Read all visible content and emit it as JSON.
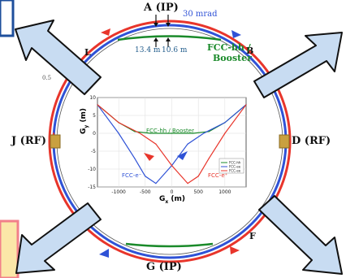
{
  "ring": {
    "point_labels": {
      "A": "A (IP)",
      "B": "B",
      "D": "D (RF)",
      "F": "F",
      "G": "G (IP)",
      "J": "J (RF)",
      "L": "L"
    },
    "annotations": {
      "crossing_angle": "30 mrad",
      "offset_left": "13.4 m",
      "offset_right": "10.6 m",
      "booster_label_line1": "FCC-hh /",
      "booster_label_line2": "Booster",
      "small_left_label": "0.5"
    }
  },
  "inset_chart": {
    "ylabel": "G",
    "ylabel_sub": "y",
    "ylabel_unit": " (m)",
    "xlabel": "G",
    "xlabel_sub": "x",
    "xlabel_unit": " (m)",
    "booster_curve_label": "FCC-hh / Booster",
    "ee_left_label": "FCC-e⁻",
    "ee_right_label": "FCC-e⁺",
    "legend": [
      "FCC-hh",
      "FCC-ee",
      "FCC-ee"
    ],
    "x_ticks": [
      "-1000",
      "-500",
      "0",
      "500",
      "1000"
    ],
    "y_ticks": [
      "10",
      "5",
      "0",
      "-5",
      "-10",
      "-15"
    ]
  },
  "colors": {
    "electron_ring": "#2f52d6",
    "positron_ring": "#e8352b",
    "booster": "#1a8a2a",
    "rf_cavity": "#c9a040",
    "overlay_fill": "#c8dcf2",
    "overlay_stroke": "#111111",
    "box_blue": "#1e4f9c",
    "box_red": "#f2808a",
    "box_yellow": "#fbe7a8"
  },
  "chart_data": {
    "type": "line",
    "series": [
      {
        "name": "FCC-hh",
        "x": [
          -1400,
          -1000,
          -700,
          -400,
          0,
          400,
          700,
          1000,
          1400
        ],
        "y": [
          8,
          3,
          0.5,
          0,
          0,
          0,
          0.5,
          3,
          8
        ]
      },
      {
        "name": "FCC-ee",
        "x": [
          -1400,
          -1000,
          -700,
          -500,
          -300,
          0,
          300,
          600,
          1000,
          1400
        ],
        "y": [
          8,
          0,
          -7,
          -12,
          -14,
          -9,
          -3,
          0,
          3,
          8
        ]
      },
      {
        "name": "FCC-ee",
        "x": [
          -1400,
          -1000,
          -600,
          -300,
          0,
          300,
          500,
          700,
          1000,
          1400
        ],
        "y": [
          8,
          3,
          0,
          -3,
          -9,
          -14,
          -12,
          -7,
          0,
          8
        ]
      }
    ],
    "xlim": [
      -1400,
      1400
    ],
    "ylim": [
      -15,
      10
    ]
  }
}
